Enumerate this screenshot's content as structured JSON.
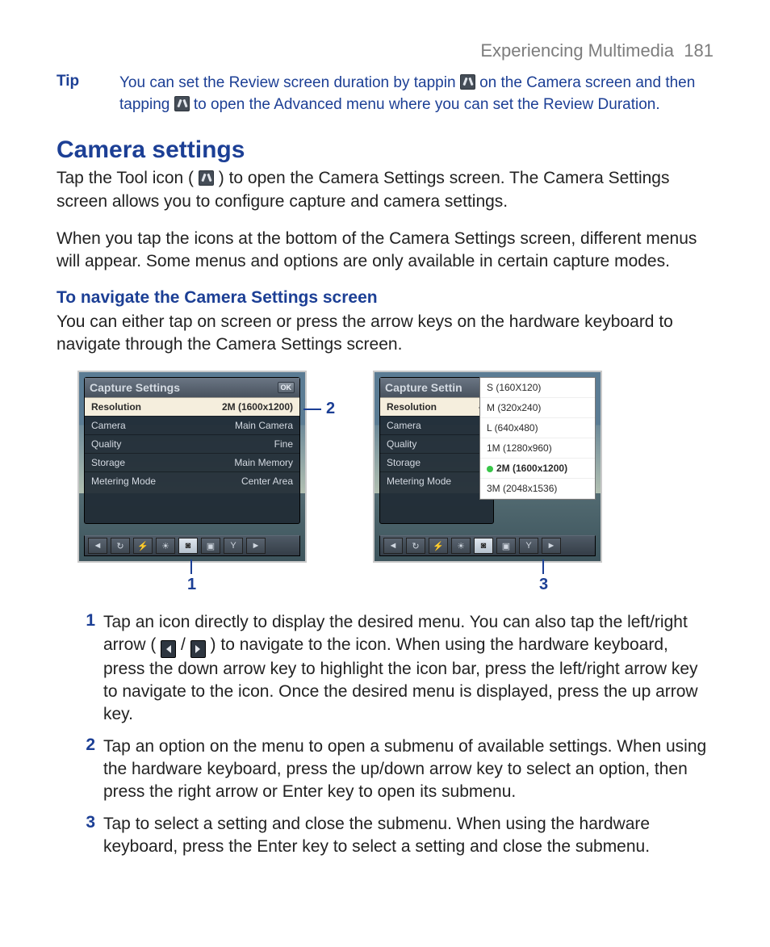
{
  "header": {
    "section": "Experiencing Multimedia",
    "pageno": "181"
  },
  "tip": {
    "label": "Tip",
    "body_a": "You can set the Review screen duration by tappin",
    "body_b": " on the Camera screen and then tapping ",
    "body_c": " to open the Advanced menu where you can set the Review Duration."
  },
  "h2": "Camera settings",
  "p1a": "Tap the Tool icon (",
  "p1b": ") to open the Camera Settings screen. The Camera Settings screen allows you to configure capture and camera settings.",
  "p2": "When you tap the icons at the bottom of the Camera Settings screen, different menus will appear. Some menus and options are only available in certain capture modes.",
  "h3": "To navigate the Camera Settings screen",
  "p3": "You can either tap on screen or press the arrow keys on the hardware keyboard to navigate through the Camera Settings screen.",
  "left_shot": {
    "title": "Capture Settings",
    "ok": "OK",
    "rows": [
      {
        "k": "Resolution",
        "v": "2M (1600x1200)",
        "hl": true
      },
      {
        "k": "Camera",
        "v": "Main Camera"
      },
      {
        "k": "Quality",
        "v": "Fine"
      },
      {
        "k": "Storage",
        "v": "Main Memory"
      },
      {
        "k": "Metering Mode",
        "v": "Center Area"
      }
    ]
  },
  "right_shot": {
    "title": "Capture Settin",
    "rows": [
      {
        "k": "Resolution",
        "v": "",
        "hl": true,
        "arrow": true
      },
      {
        "k": "Camera",
        "v": ""
      },
      {
        "k": "Quality",
        "v": ""
      },
      {
        "k": "Storage",
        "v": ""
      },
      {
        "k": "Metering Mode",
        "v": ""
      }
    ],
    "popup": [
      "S (160X120)",
      "M (320x240)",
      "L (640x480)",
      "1M (1280x960)",
      "2M (1600x1200)",
      "3M (2048x1536)"
    ],
    "popup_selected_index": 4
  },
  "callouts": {
    "c1": "1",
    "c2": "2",
    "c3": "3"
  },
  "steps": [
    {
      "n": "1",
      "a": "Tap an icon directly to display the desired menu. You can also tap the left/right arrow (",
      "b": " / ",
      "c": ") to navigate to the icon. When using the hardware keyboard, press the down arrow key to highlight the icon bar, press the left/right arrow key to navigate to the icon. Once the desired menu is displayed, press the up arrow key."
    },
    {
      "n": "2",
      "a": "Tap an option on the menu to open a submenu of available settings. When using the hardware keyboard, press the up/down arrow key to select an option, then press the right arrow or Enter key to open its submenu."
    },
    {
      "n": "3",
      "a": "Tap to select a setting and close the submenu. When using the hardware keyboard, press the Enter key to select a setting and close the submenu."
    }
  ]
}
